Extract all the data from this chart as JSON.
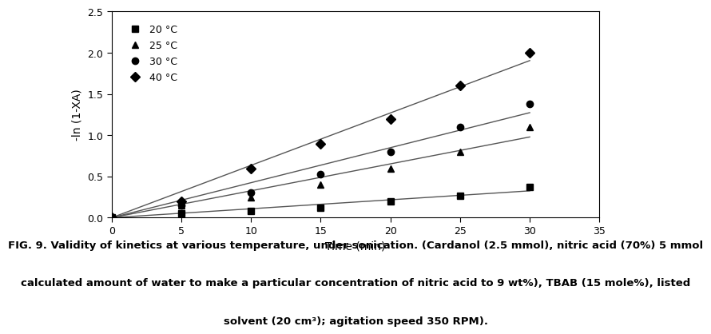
{
  "time": [
    0,
    5,
    10,
    15,
    20,
    25,
    30
  ],
  "series": {
    "20C": {
      "label": "20 °C",
      "marker": "s",
      "y": [
        0,
        0.05,
        0.08,
        0.12,
        0.2,
        0.27,
        0.37
      ]
    },
    "25C": {
      "label": "25 °C",
      "marker": "^",
      "y": [
        0,
        0.15,
        0.25,
        0.4,
        0.6,
        0.8,
        1.1
      ]
    },
    "30C": {
      "label": "30 °C",
      "marker": "o",
      "y": [
        0,
        0.15,
        0.3,
        0.53,
        0.8,
        1.1,
        1.38
      ]
    },
    "40C": {
      "label": "40 °C",
      "marker": "D",
      "y": [
        0,
        0.2,
        0.6,
        0.9,
        1.2,
        1.6,
        2.0
      ]
    }
  },
  "xlabel": "Time (min)",
  "ylabel": "-ln (1-XA)",
  "xlim": [
    0,
    35
  ],
  "ylim": [
    0,
    2.5
  ],
  "xticks": [
    0,
    5,
    10,
    15,
    20,
    25,
    30,
    35
  ],
  "yticks": [
    0,
    0.5,
    1,
    1.5,
    2,
    2.5
  ],
  "color": "#000000",
  "linecolor": "#555555",
  "caption_line1": "FIG. 9. Validity of kinetics at various temperature, under sonication. (Cardanol (2.5 mmol), nitric acid (70%) 5 mmol",
  "caption_line2": "calculated amount of water to make a particular concentration of nitric acid to 9 wt%), TBAB (15 mole%), listed",
  "caption_line3": "solvent (20 cm³); agitation speed 350 RPM).",
  "fig_width": 8.25,
  "fig_height": 4.3,
  "marker_size": 6,
  "legend_fontsize": 9,
  "axis_fontsize": 10,
  "caption_fontsize": 9.5
}
